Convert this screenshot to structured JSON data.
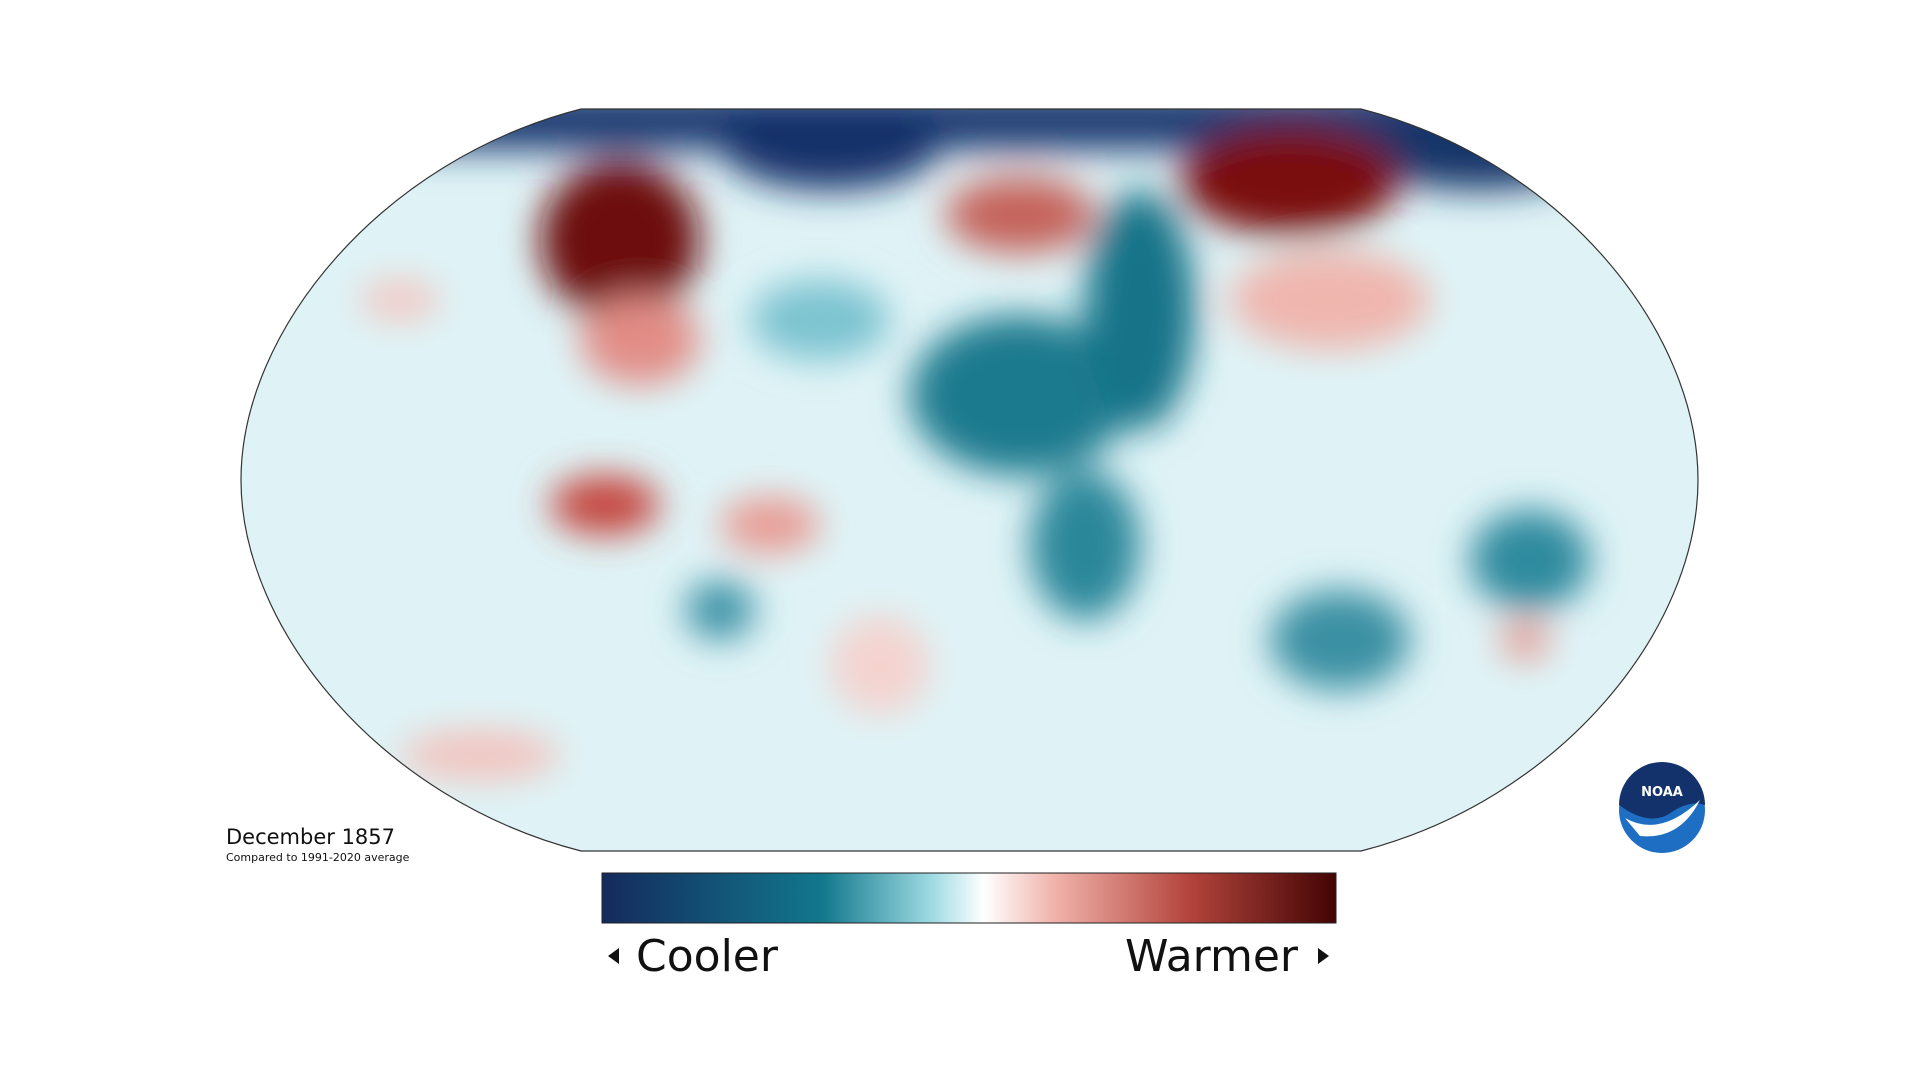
{
  "map": {
    "title": "December 1857",
    "subtitle": "Compared to 1991-2020 average"
  },
  "legend": {
    "low_label": "Cooler",
    "high_label": "Warmer"
  },
  "logo": {
    "text": "NOAA"
  }
}
